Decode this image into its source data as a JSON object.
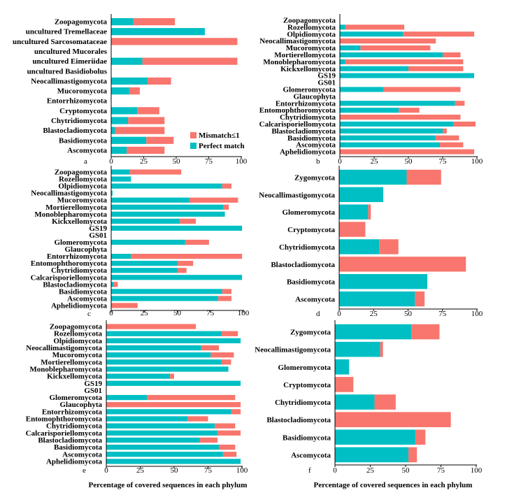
{
  "colors": {
    "perfect": "#00bfc4",
    "mismatch": "#f8766d",
    "axis": "#000000"
  },
  "legend": {
    "mismatch_label": "Mismatch≤1",
    "perfect_label": "Perfect match"
  },
  "xlabel_left": "Percentage of covered sequences in each phylum",
  "xlabel_right": "Percentage of covered sequences in each phylum",
  "chart_data": [
    {
      "panel": "a",
      "type": "bar",
      "orientation": "horizontal",
      "stacked": true,
      "xlim": [
        0,
        100
      ],
      "ticks": [
        0,
        25,
        50,
        75,
        100
      ],
      "categories": [
        "Zoopagomycota",
        "uncultured Tremellaceae",
        "uncultured Sarcosomataceae",
        "uncultured Mucorales",
        "uncultured Eimeriidae",
        "uncultured Basidiobolus",
        "Neocallimastigomycota",
        "Mucoromycota",
        "Entorrhizomycota",
        "Cryptomycota",
        "Chytridiomycota",
        "Blastocladiomycota",
        "Basidiomycota",
        "Ascomycota"
      ],
      "series": [
        {
          "name": "Perfect match",
          "values": [
            17,
            72,
            0,
            0,
            24,
            0,
            28,
            14,
            0,
            20,
            13,
            3,
            27,
            12
          ]
        },
        {
          "name": "Mismatch≤1",
          "values": [
            32,
            0,
            97,
            0,
            73,
            0,
            18,
            8,
            0,
            17,
            28,
            38,
            21,
            29
          ]
        }
      ],
      "legend_position": "bottom-right"
    },
    {
      "panel": "b",
      "type": "bar",
      "orientation": "horizontal",
      "stacked": true,
      "xlim": [
        0,
        100
      ],
      "ticks": [
        0,
        25,
        50,
        75,
        100
      ],
      "categories": [
        "Zoopagomycota",
        "Rozellomycota",
        "Olpidiomycota",
        "Neocallimastigomycota",
        "Mucoromycota",
        "Mortierellomycota",
        "Monoblepharomycota",
        "Kickxellomycota",
        "GS19",
        "GS01",
        "Glomeromycota",
        "Glaucophyta",
        "Entorrhizomycota",
        "Entomophthoromycota",
        "Chytridiomycota",
        "Calcarisporiellomycota",
        "Blastocladiomycota",
        "Basidiomycota",
        "Ascomycota",
        "Aphelidiomycota"
      ],
      "series": [
        {
          "name": "Perfect match",
          "values": [
            0,
            4,
            46,
            0,
            15,
            75,
            4,
            50,
            98,
            0,
            32,
            0,
            84,
            43,
            0,
            83,
            75,
            70,
            73,
            0
          ]
        },
        {
          "name": "Mismatch≤1",
          "values": [
            0,
            43,
            52,
            70,
            51,
            13,
            86,
            40,
            0,
            0,
            56,
            0,
            7,
            15,
            88,
            16,
            3,
            17,
            17,
            98
          ]
        }
      ]
    },
    {
      "panel": "c",
      "type": "bar",
      "orientation": "horizontal",
      "stacked": true,
      "xlim": [
        0,
        100
      ],
      "ticks": [
        0,
        25,
        50,
        75,
        100
      ],
      "categories": [
        "Zoopagomycota",
        "Rozellomycota",
        "Olpidiomycota",
        "Neocallimastigomycota",
        "Mucoromycota",
        "Mortierellomycota",
        "Monoblepharomycota",
        "Kickxellomycota",
        "GS19",
        "GS01",
        "Glomeromycota",
        "Glaucophyta",
        "Entorrhizomycota",
        "Entomophthoromycota",
        "Chytridiomycota",
        "Calcarisporiellomycota",
        "Blastocladiomycota",
        "Basidiomycota",
        "Ascomycota",
        "Aphelidiomycota"
      ],
      "series": [
        {
          "name": "Perfect match",
          "values": [
            14,
            15,
            84,
            1,
            59,
            85,
            86,
            52,
            99,
            0,
            56,
            0,
            15,
            50,
            50,
            99,
            2,
            84,
            81,
            0
          ]
        },
        {
          "name": "Mismatch≤1",
          "values": [
            39,
            0,
            7,
            0,
            37,
            4,
            0,
            12,
            0,
            0,
            18,
            0,
            84,
            12,
            7,
            0,
            3,
            7,
            10,
            20
          ]
        }
      ]
    },
    {
      "panel": "d",
      "type": "bar",
      "orientation": "horizontal",
      "stacked": true,
      "xlim": [
        0,
        100
      ],
      "ticks": [
        0,
        25,
        50,
        75,
        100
      ],
      "categories": [
        "Zygomycota",
        "Neocallimastigomycota",
        "Glomeromycota",
        "Cryptomycota",
        "Chytridiomycota",
        "Blastocladiomycota",
        "Basidiomycota",
        "Ascomycota"
      ],
      "series": [
        {
          "name": "Perfect match",
          "values": [
            49,
            32,
            21,
            0,
            29,
            0,
            64,
            55
          ]
        },
        {
          "name": "Mismatch≤1",
          "values": [
            25,
            0,
            2,
            19,
            14,
            92,
            0,
            7
          ]
        }
      ]
    },
    {
      "panel": "e",
      "type": "bar",
      "orientation": "horizontal",
      "stacked": true,
      "xlim": [
        0,
        100
      ],
      "ticks": [
        0,
        25,
        50,
        75,
        100
      ],
      "categories": [
        "Zoopagomycota",
        "Rozellomycota",
        "Olpidiomycota",
        "Neocallimastigomycota",
        "Mucoromycota",
        "Mortierellomycota",
        "Monoblepharomycota",
        "Kickxellomycota",
        "GS19",
        "GS01",
        "Glomeromycota",
        "Glaucophyta",
        "Entorrhizomycota",
        "Entomophthoromycota",
        "Chytridiomycota",
        "Calcarisporiellomycota",
        "Blastocladiomycota",
        "Basidiomycota",
        "Ascomycota",
        "Aphelidiomycota"
      ],
      "series": [
        {
          "name": "Perfect match",
          "values": [
            0,
            85,
            99,
            70,
            77,
            85,
            90,
            47,
            99,
            0,
            30,
            0,
            92,
            60,
            80,
            82,
            69,
            83,
            86,
            99
          ]
        },
        {
          "name": "Mismatch≤1",
          "values": [
            66,
            12,
            0,
            13,
            17,
            7,
            0,
            3,
            0,
            0,
            65,
            99,
            7,
            15,
            15,
            17,
            13,
            12,
            10,
            0
          ]
        }
      ]
    },
    {
      "panel": "f",
      "type": "bar",
      "orientation": "horizontal",
      "stacked": true,
      "xlim": [
        0,
        100
      ],
      "ticks": [
        0,
        25,
        50,
        75,
        100
      ],
      "categories": [
        "Zygomycota",
        "Neocallimastigomycota",
        "Glomeromycota",
        "Cryptomycota",
        "Chytridiomycota",
        "Blastocladiomycota",
        "Basidiomycota",
        "Ascomycota"
      ],
      "series": [
        {
          "name": "Perfect match",
          "values": [
            54,
            32,
            10,
            0,
            28,
            0,
            57,
            52
          ]
        },
        {
          "name": "Mismatch≤1",
          "values": [
            20,
            2,
            0,
            13,
            15,
            82,
            7,
            6
          ]
        }
      ]
    }
  ]
}
